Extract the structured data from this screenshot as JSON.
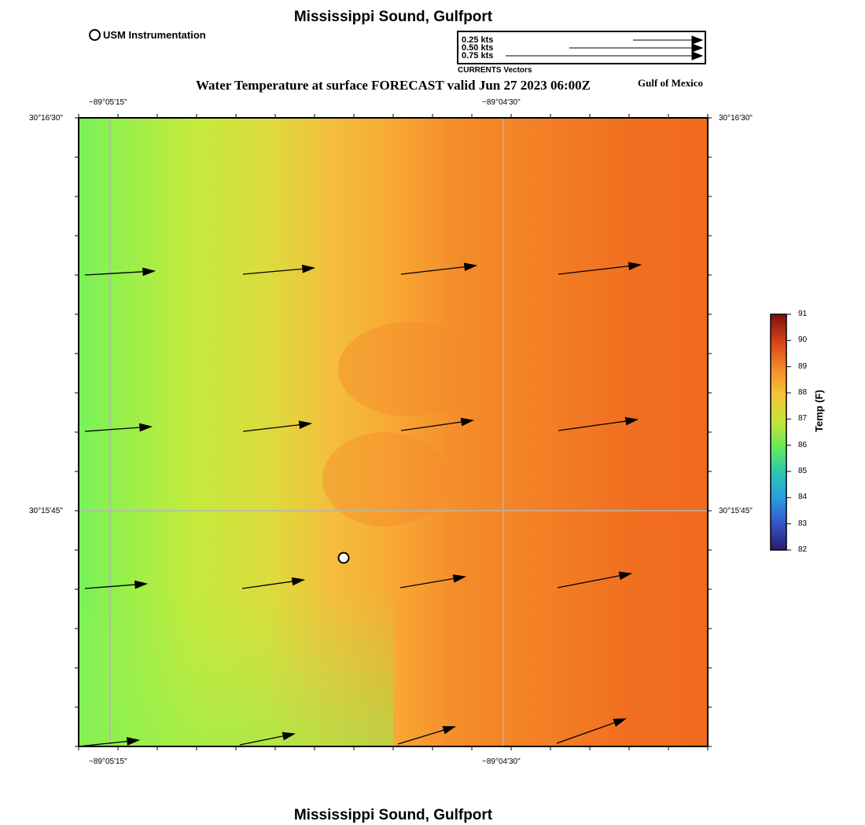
{
  "header": {
    "title": "Mississippi Sound, Gulfport",
    "usm_legend_label": "USM Instrumentation",
    "subtitle": "Water Temperature at surface FORECAST valid Jun 27 2023 06:00Z",
    "region_label": "Gulf of Mexico"
  },
  "vector_legend": {
    "rows": [
      {
        "label": "0.25 kts",
        "knots": 0.25
      },
      {
        "label": "0.50 kts",
        "knots": 0.5
      },
      {
        "label": "0.75 kts",
        "knots": 0.75
      }
    ],
    "caption": "CURRENTS Vectors"
  },
  "map": {
    "longitude_labels": [
      "−89°05'15\"",
      "−89°04'30\""
    ],
    "latitude_labels": [
      "30°16'30\"",
      "30°15'45\""
    ],
    "usm_station": {
      "name": "USM Instrumentation"
    }
  },
  "colorbar": {
    "title": "Temp (F)",
    "ticks": [
      "91",
      "90",
      "89",
      "88",
      "87",
      "86",
      "85",
      "84",
      "83",
      "82"
    ],
    "min": 82,
    "max": 91,
    "colors": [
      "#2b1e6b",
      "#3553c9",
      "#2a9ee0",
      "#2bc7b0",
      "#6bea55",
      "#c9e23a",
      "#f2c43a",
      "#f58a2a",
      "#d84418",
      "#7e0f0f"
    ]
  },
  "footer": {
    "title": "Mississippi Sound, Gulfport"
  },
  "colors": {
    "grid_line": "#b5b5b5",
    "frame": "#000000",
    "arrow": "#000000"
  }
}
